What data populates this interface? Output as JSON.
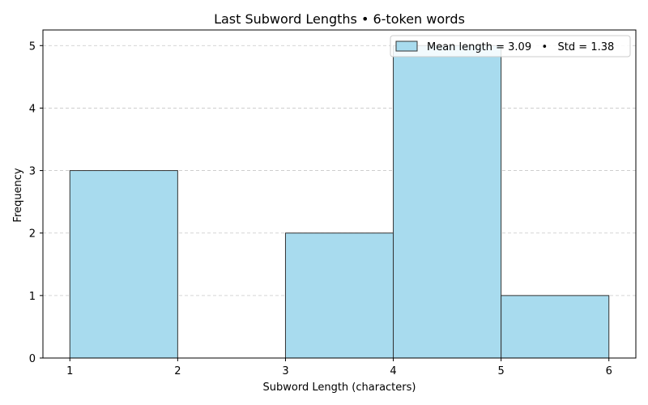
{
  "chart_data": {
    "type": "bar",
    "title": "Last Subword Lengths • 6-token words",
    "xlabel": "Subword Length (characters)",
    "ylabel": "Frequency",
    "bins": [
      {
        "start": 1,
        "end": 2,
        "value": 3
      },
      {
        "start": 2,
        "end": 3,
        "value": 0
      },
      {
        "start": 3,
        "end": 4,
        "value": 2
      },
      {
        "start": 4,
        "end": 5,
        "value": 5
      },
      {
        "start": 5,
        "end": 6,
        "value": 1
      }
    ],
    "xticks": [
      1,
      2,
      3,
      4,
      5,
      6
    ],
    "yticks": [
      0,
      1,
      2,
      3,
      4,
      5
    ],
    "xlim": [
      0.75,
      6.25
    ],
    "ylim": [
      0,
      5.25
    ],
    "legend": {
      "label": "Mean length = 3.09   •   Std = 1.38",
      "position": "top-right"
    },
    "grid": {
      "y": true,
      "x": false
    },
    "colors": {
      "bar_fill": "#a8dbee",
      "bar_edge": "#333333",
      "grid": "#c8c8c8"
    }
  }
}
